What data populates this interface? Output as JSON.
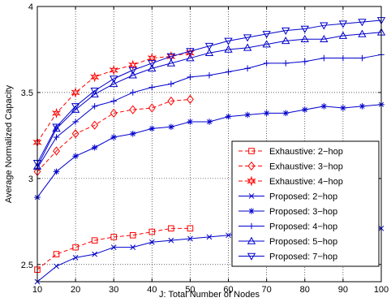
{
  "chart_data": {
    "type": "line",
    "title": "",
    "xlabel": "J: Total Number of Nodes",
    "ylabel": "Average Normalized Capacity",
    "xlim": [
      10,
      100
    ],
    "ylim": [
      2.4,
      4.0
    ],
    "xticks": [
      10,
      20,
      30,
      40,
      50,
      60,
      70,
      80,
      90,
      100
    ],
    "yticks": [
      2.5,
      3,
      3.5,
      4
    ],
    "ytick_labels": [
      "2.5",
      "3",
      "3.5",
      "4"
    ],
    "grid": true,
    "legend_position": "lower-right",
    "x": [
      10,
      15,
      20,
      25,
      30,
      35,
      40,
      45,
      50,
      55,
      60,
      65,
      70,
      75,
      80,
      85,
      90,
      95,
      100
    ],
    "series": [
      {
        "name": "Exhaustive: 2−hop",
        "color": "#ff0000",
        "dash": "dashed",
        "marker": "square",
        "values": [
          2.47,
          2.56,
          2.6,
          2.64,
          2.66,
          2.67,
          2.69,
          2.71,
          2.71,
          null,
          null,
          null,
          null,
          null,
          null,
          null,
          null,
          null,
          null
        ]
      },
      {
        "name": "Exhaustive: 3−hop",
        "color": "#ff0000",
        "dash": "dashed",
        "marker": "diamond",
        "values": [
          3.04,
          3.16,
          3.26,
          3.31,
          3.38,
          3.4,
          3.41,
          3.45,
          3.46,
          null,
          null,
          null,
          null,
          null,
          null,
          null,
          null,
          null,
          null
        ]
      },
      {
        "name": "Exhaustive: 4−hop",
        "color": "#ff0000",
        "dash": "dashed",
        "marker": "star",
        "values": [
          3.21,
          3.38,
          3.5,
          3.59,
          3.63,
          3.66,
          3.7,
          3.71,
          3.73,
          null,
          null,
          null,
          null,
          null,
          null,
          null,
          null,
          null,
          null
        ]
      },
      {
        "name": "Proposed: 2−hop",
        "color": "#0000cc",
        "dash": "solid",
        "marker": "x",
        "values": [
          2.4,
          2.49,
          2.54,
          2.56,
          2.6,
          2.6,
          2.63,
          2.64,
          2.65,
          2.66,
          2.67,
          2.68,
          2.69,
          2.7,
          2.7,
          2.71,
          2.72,
          2.72,
          2.71
        ]
      },
      {
        "name": "Proposed: 3−hop",
        "color": "#0000cc",
        "dash": "solid",
        "marker": "asterisk",
        "values": [
          2.89,
          3.04,
          3.13,
          3.18,
          3.24,
          3.26,
          3.29,
          3.3,
          3.33,
          3.33,
          3.36,
          3.37,
          3.38,
          3.38,
          3.4,
          3.42,
          3.41,
          3.42,
          3.43
        ]
      },
      {
        "name": "Proposed: 4−hop",
        "color": "#0000cc",
        "dash": "solid",
        "marker": "plus",
        "values": [
          3.06,
          3.24,
          3.33,
          3.42,
          3.45,
          3.5,
          3.53,
          3.55,
          3.59,
          3.6,
          3.62,
          3.64,
          3.67,
          3.67,
          3.68,
          3.7,
          3.7,
          3.7,
          3.72
        ]
      },
      {
        "name": "Proposed: 5−hop",
        "color": "#0000cc",
        "dash": "solid",
        "marker": "triangle-up",
        "values": [
          3.07,
          3.29,
          3.4,
          3.49,
          3.55,
          3.6,
          3.64,
          3.67,
          3.7,
          3.73,
          3.75,
          3.76,
          3.78,
          3.8,
          3.81,
          3.81,
          3.83,
          3.84,
          3.85
        ]
      },
      {
        "name": "Proposed: 7−hop",
        "color": "#0000cc",
        "dash": "solid",
        "marker": "triangle-down",
        "values": [
          3.09,
          3.3,
          3.42,
          3.51,
          3.58,
          3.63,
          3.67,
          3.71,
          3.74,
          3.77,
          3.8,
          3.82,
          3.84,
          3.86,
          3.87,
          3.89,
          3.9,
          3.91,
          3.92
        ]
      }
    ]
  }
}
